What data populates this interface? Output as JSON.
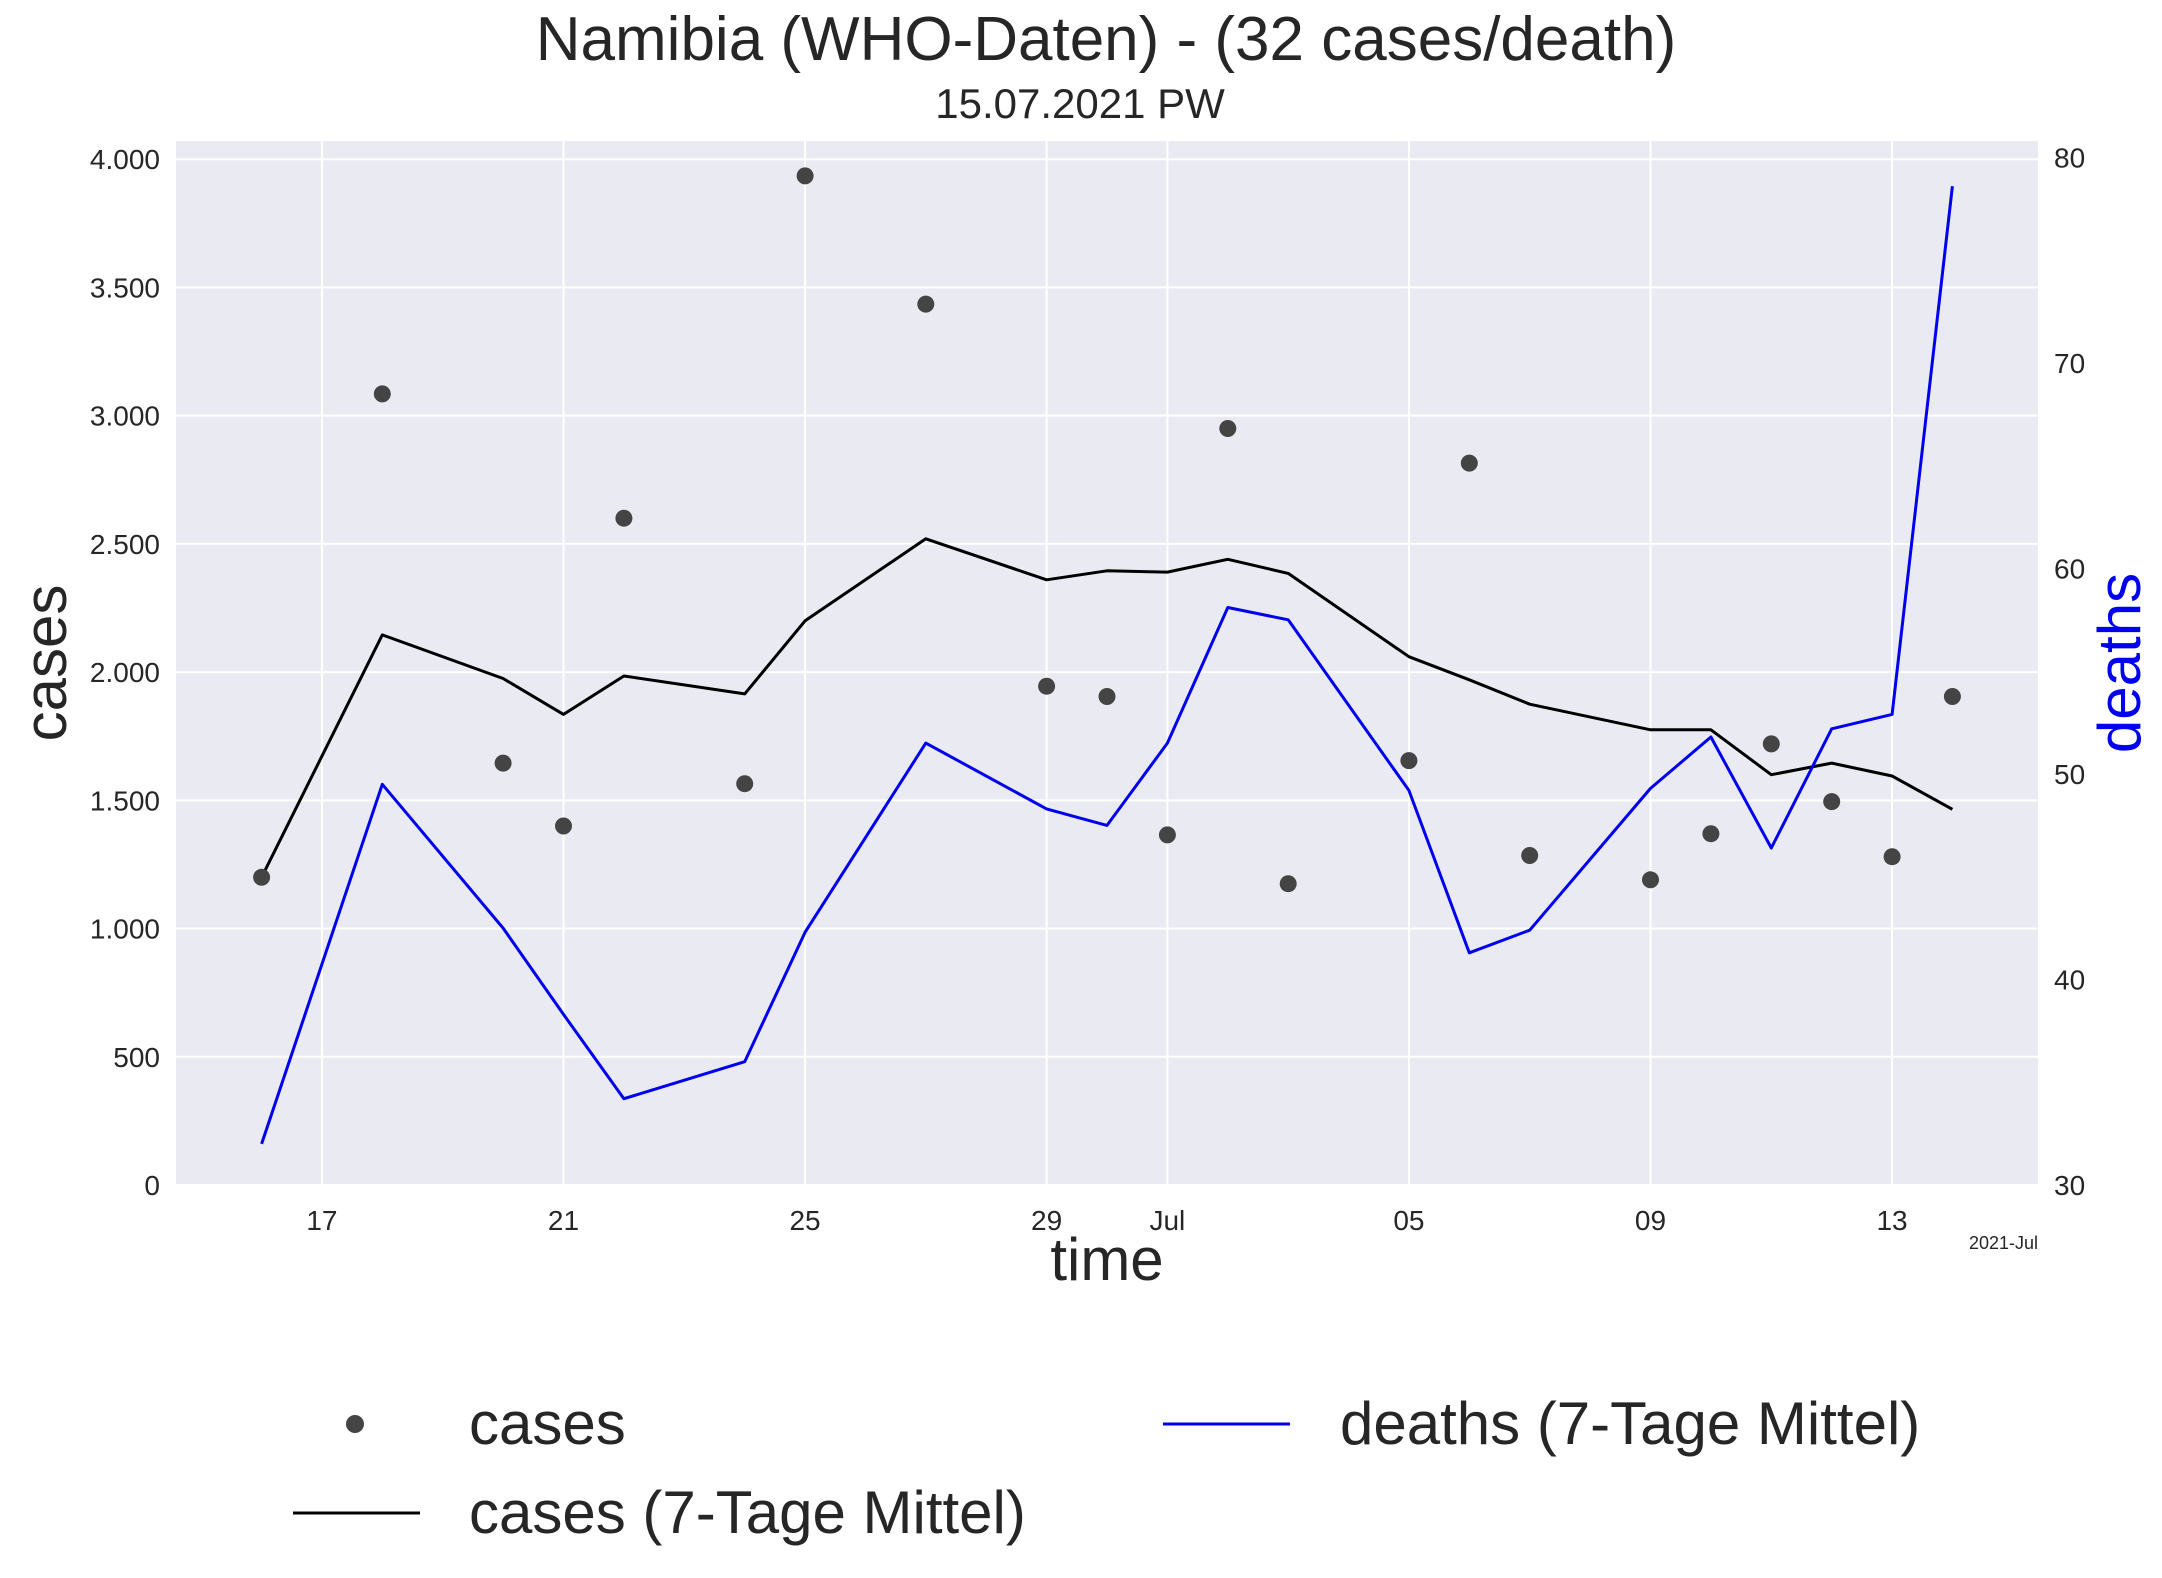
{
  "chart_data": {
    "type": "line",
    "title": "Namibia (WHO-Daten) - (32 cases/death)",
    "subtitle": "15.07.2021 PW",
    "xlabel": "time",
    "ylabel_left": "cases",
    "ylabel_right": "deaths",
    "x_offset_label": "2021-Jul",
    "x": [
      "2021-06-16",
      "2021-06-18",
      "2021-06-20",
      "2021-06-21",
      "2021-06-22",
      "2021-06-24",
      "2021-06-25",
      "2021-06-27",
      "2021-06-29",
      "2021-06-30",
      "2021-07-01",
      "2021-07-02",
      "2021-07-03",
      "2021-07-05",
      "2021-07-06",
      "2021-07-07",
      "2021-07-09",
      "2021-07-10",
      "2021-07-11",
      "2021-07-12",
      "2021-07-13",
      "2021-07-14"
    ],
    "xlim": [
      "2021-06-14T14:00",
      "2021-07-15T10:00"
    ],
    "x_ticks": [
      {
        "date": "2021-06-17",
        "label": "17"
      },
      {
        "date": "2021-06-21",
        "label": "21"
      },
      {
        "date": "2021-06-25",
        "label": "25"
      },
      {
        "date": "2021-06-29",
        "label": "29"
      },
      {
        "date": "2021-07-01",
        "label": "Jul"
      },
      {
        "date": "2021-07-05",
        "label": "05"
      },
      {
        "date": "2021-07-09",
        "label": "09"
      },
      {
        "date": "2021-07-13",
        "label": "13"
      }
    ],
    "ylim_left": [
      0,
      4071
    ],
    "yticks_left": [
      {
        "value": 0,
        "label": "0"
      },
      {
        "value": 500,
        "label": "500"
      },
      {
        "value": 1000,
        "label": "1.000"
      },
      {
        "value": 1500,
        "label": "1.500"
      },
      {
        "value": 2000,
        "label": "2.000"
      },
      {
        "value": 2500,
        "label": "2.500"
      },
      {
        "value": 3000,
        "label": "3.000"
      },
      {
        "value": 3500,
        "label": "3.500"
      },
      {
        "value": 4000,
        "label": "4.000"
      }
    ],
    "ylim_right": [
      30,
      80.8
    ],
    "yticks_right": [
      {
        "value": 30,
        "label": "30"
      },
      {
        "value": 40,
        "label": "40"
      },
      {
        "value": 50,
        "label": "50"
      },
      {
        "value": 60,
        "label": "60"
      },
      {
        "value": 70,
        "label": "70"
      },
      {
        "value": 80,
        "label": "80"
      }
    ],
    "grid": true,
    "legend_position": "bottom",
    "series": [
      {
        "name": "cases",
        "kind": "scatter",
        "axis": "left",
        "color": "#444444",
        "values": [
          1200,
          3085,
          1645,
          1400,
          2600,
          1565,
          3935,
          3435,
          1945,
          1905,
          1365,
          2950,
          1175,
          1655,
          2815,
          1285,
          1190,
          1370,
          1720,
          1495,
          1280,
          1905
        ]
      },
      {
        "name": "cases (7-Tage Mittel)",
        "kind": "line",
        "axis": "left",
        "color": "#000000",
        "values": [
          1200,
          2145,
          1975,
          1835,
          1985,
          1915,
          2200,
          2520,
          2360,
          2395,
          2390,
          2440,
          2385,
          2060,
          1970,
          1875,
          1775,
          1775,
          1600,
          1645,
          1595,
          1465
        ]
      },
      {
        "name": "deaths (7-Tage Mittel)",
        "kind": "line",
        "axis": "right",
        "color": "#0000ee",
        "values": [
          32.0,
          49.5,
          42.5,
          38.3,
          34.2,
          36.0,
          42.3,
          51.5,
          48.3,
          47.5,
          51.5,
          58.1,
          57.5,
          49.2,
          41.3,
          42.4,
          49.3,
          51.8,
          46.4,
          52.2,
          52.9,
          78.6
        ]
      }
    ]
  }
}
